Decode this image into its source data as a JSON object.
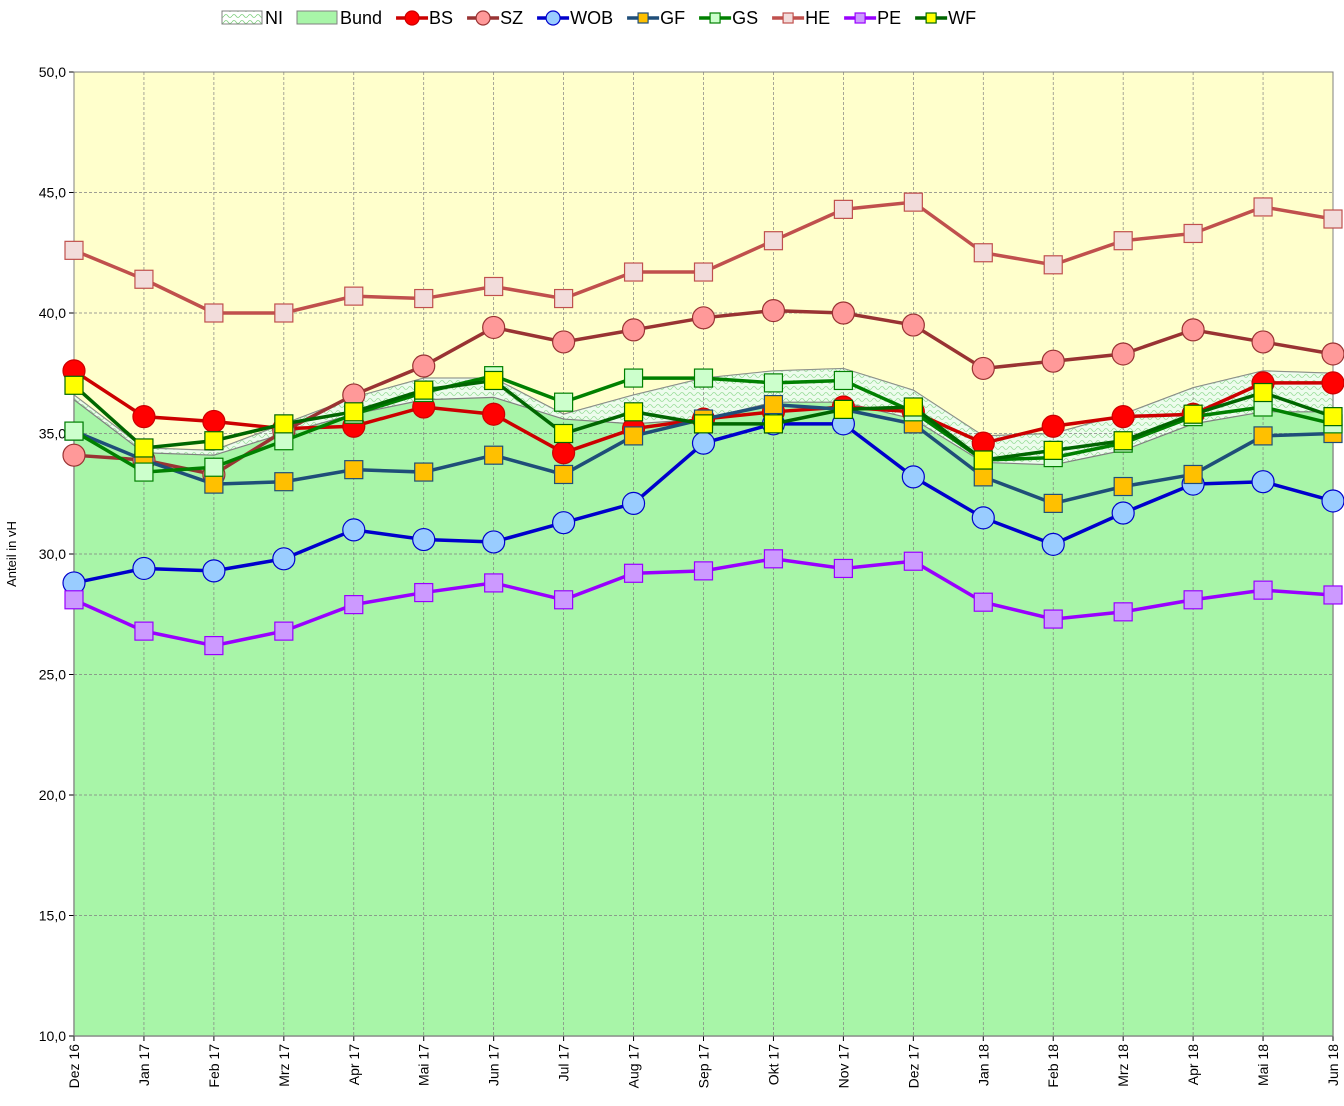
{
  "chart_data": {
    "type": "line",
    "y_label": "Anteil in vH",
    "categories": [
      "Dez 16",
      "Jan 17",
      "Feb 17",
      "Mrz 17",
      "Apr 17",
      "Mai 17",
      "Jun 17",
      "Jul 17",
      "Aug 17",
      "Sep 17",
      "Okt 17",
      "Nov 17",
      "Dez 17",
      "Jan 18",
      "Feb 18",
      "Mrz 18",
      "Apr 18",
      "Mai 18",
      "Jun 18"
    ],
    "ylim": [
      10,
      50
    ],
    "yticks": [
      {
        "value": 10,
        "label": "10,0"
      },
      {
        "value": 15,
        "label": "15,0"
      },
      {
        "value": 20,
        "label": "20,0"
      },
      {
        "value": 25,
        "label": "25,0"
      },
      {
        "value": 30,
        "label": "30,0"
      },
      {
        "value": 35,
        "label": "35,0"
      },
      {
        "value": 40,
        "label": "40,0"
      },
      {
        "value": 45,
        "label": "45,0"
      },
      {
        "value": 50,
        "label": "50,0"
      }
    ],
    "grid": true,
    "background": "#ffffcc",
    "legend": "top",
    "series": [
      {
        "name": "NI",
        "type": "area",
        "color": "#ccf5cc",
        "line": "#808080",
        "values": [
          36.6,
          34.4,
          34.3,
          35.4,
          36.5,
          37.3,
          37.3,
          35.8,
          36.6,
          37.3,
          37.6,
          37.7,
          36.8,
          34.9,
          35.0,
          35.8,
          36.9,
          37.6,
          37.5
        ]
      },
      {
        "name": "Bund",
        "type": "area",
        "color": "#a8f5a8",
        "line": "#808080",
        "values": [
          36.4,
          34.2,
          34.1,
          35.0,
          35.8,
          36.4,
          36.5,
          35.6,
          35.4,
          35.6,
          36.3,
          36.3,
          35.6,
          33.8,
          33.7,
          34.3,
          35.4,
          35.9,
          35.9
        ]
      },
      {
        "name": "BS",
        "type": "line",
        "marker": "circle",
        "color": "#cc0000",
        "fill": "#ff0000",
        "values": [
          37.6,
          35.7,
          35.5,
          35.2,
          35.3,
          36.1,
          35.8,
          34.2,
          35.2,
          35.6,
          35.9,
          36.1,
          35.9,
          34.6,
          35.3,
          35.7,
          35.8,
          37.1,
          37.1
        ]
      },
      {
        "name": "SZ",
        "type": "line",
        "marker": "circle",
        "color": "#993333",
        "fill": "#ff9999",
        "values": [
          34.1,
          33.9,
          33.3,
          35.1,
          36.6,
          37.8,
          39.4,
          38.8,
          39.3,
          39.8,
          40.1,
          40.0,
          39.5,
          37.7,
          38.0,
          38.3,
          39.3,
          38.8,
          38.3
        ]
      },
      {
        "name": "WOB",
        "type": "line",
        "marker": "circle",
        "color": "#0000cc",
        "fill": "#99ccff",
        "values": [
          28.8,
          29.4,
          29.3,
          29.8,
          31.0,
          30.6,
          30.5,
          31.3,
          32.1,
          34.6,
          35.4,
          35.4,
          33.2,
          31.5,
          30.4,
          31.7,
          32.9,
          33.0,
          32.2
        ]
      },
      {
        "name": "GF",
        "type": "line",
        "marker": "square",
        "color": "#1f4e79",
        "fill": "#ffc000",
        "values": [
          35.1,
          33.9,
          32.9,
          33.0,
          33.5,
          33.4,
          34.1,
          33.3,
          34.9,
          35.6,
          36.2,
          36.0,
          35.4,
          33.2,
          32.1,
          32.8,
          33.3,
          34.9,
          35.0
        ]
      },
      {
        "name": "GS",
        "type": "line",
        "marker": "square",
        "color": "#008000",
        "fill": "#ccffcc",
        "values": [
          35.1,
          33.4,
          33.6,
          34.7,
          35.8,
          36.7,
          37.4,
          36.3,
          37.3,
          37.3,
          37.1,
          37.2,
          35.9,
          33.9,
          34.0,
          34.6,
          35.7,
          36.1,
          35.4
        ]
      },
      {
        "name": "HE",
        "type": "line",
        "marker": "square",
        "color": "#c0504d",
        "fill": "#f2dcdb",
        "values": [
          42.6,
          41.4,
          40.0,
          40.0,
          40.7,
          40.6,
          41.1,
          40.6,
          41.7,
          41.7,
          43.0,
          44.3,
          44.6,
          42.5,
          42.0,
          43.0,
          43.3,
          44.4,
          43.9
        ]
      },
      {
        "name": "PE",
        "type": "line",
        "marker": "square",
        "color": "#9900ff",
        "fill": "#cc99ff",
        "values": [
          28.1,
          26.8,
          26.2,
          26.8,
          27.9,
          28.4,
          28.8,
          28.1,
          29.2,
          29.3,
          29.8,
          29.4,
          29.7,
          28.0,
          27.3,
          27.6,
          28.1,
          28.5,
          28.3
        ]
      },
      {
        "name": "WF",
        "type": "line",
        "marker": "square",
        "color": "#006600",
        "fill": "#ffff00",
        "values": [
          37.0,
          34.4,
          34.7,
          35.4,
          35.9,
          36.8,
          37.2,
          35.0,
          35.9,
          35.4,
          35.4,
          36.0,
          36.1,
          33.9,
          34.3,
          34.7,
          35.8,
          36.7,
          35.7
        ]
      }
    ]
  }
}
